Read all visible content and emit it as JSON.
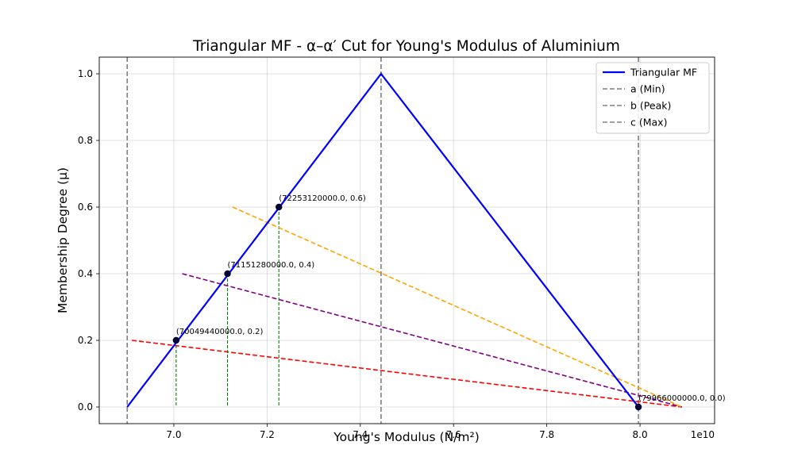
{
  "chart_data": {
    "type": "line",
    "title": "Triangular MF - α–α′ Cut for Young's Modulus of Aluminium",
    "xlabel": "Young's Modulus (N/m²)",
    "ylabel": "Membership Degree (μ)",
    "x_offset_label": "1e10",
    "xlim": [
      68400000000.0,
      81600000000.0
    ],
    "ylim": [
      -0.05,
      1.05
    ],
    "x_ticks": [
      70000000000.0,
      72000000000.0,
      74000000000.0,
      76000000000.0,
      78000000000.0,
      80000000000.0
    ],
    "x_tick_labels": [
      "7.0",
      "7.2",
      "7.4",
      "7.6",
      "7.8",
      "8.0"
    ],
    "y_ticks": [
      0.0,
      0.2,
      0.4,
      0.6,
      0.8,
      1.0
    ],
    "y_tick_labels": [
      "0.0",
      "0.2",
      "0.4",
      "0.6",
      "0.8",
      "1.0"
    ],
    "grid": true,
    "legend_position": "top-right",
    "colors": {
      "mf": "#0000ff",
      "bounds": "#808080",
      "vertical_cut": "#008000",
      "alpha_lines": [
        "#ff0000",
        "#800080",
        "#ffa500"
      ],
      "points": "#000033"
    },
    "series": [
      {
        "name": "Triangular MF",
        "x": [
          69000000000.0,
          74445000000.0,
          79966000000.0
        ],
        "y": [
          0.0,
          1.0,
          0.0
        ]
      }
    ],
    "bounds": [
      {
        "name": "a (Min)",
        "x": 69000000000.0
      },
      {
        "name": "b (Peak)",
        "x": 74445000000.0
      },
      {
        "name": "c (Max)",
        "x": 79966000000.0
      }
    ],
    "alpha_cuts": [
      {
        "alpha": 0.2,
        "x": 70049440000.0,
        "line_start": [
          69100000000.0,
          0.2
        ],
        "line_end": [
          80900000000.0,
          0.0
        ]
      },
      {
        "alpha": 0.4,
        "x": 71151280000.0,
        "line_start": [
          70180000000.0,
          0.4
        ],
        "line_end": [
          80900000000.0,
          0.0
        ]
      },
      {
        "alpha": 0.6,
        "x": 72253120000.0,
        "line_start": [
          71260000000.0,
          0.6
        ],
        "line_end": [
          80900000000.0,
          0.0
        ]
      }
    ],
    "annotations": [
      {
        "text": "(70049440000.0, 0.2)",
        "x": 70049440000.0,
        "y": 0.2
      },
      {
        "text": "(71151280000.0, 0.4)",
        "x": 71151280000.0,
        "y": 0.4
      },
      {
        "text": "(72253120000.0, 0.6)",
        "x": 72253120000.0,
        "y": 0.6
      },
      {
        "text": "(79966000000.0, 0.0)",
        "x": 79966000000.0,
        "y": 0.0
      }
    ]
  }
}
